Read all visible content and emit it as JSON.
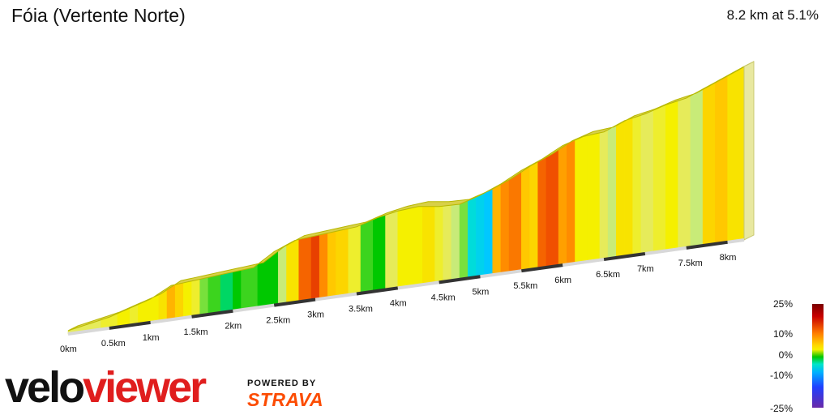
{
  "header": {
    "title": "Fóia (Vertente Norte)",
    "summary": "8.2 km at 5.1%"
  },
  "chart_data": {
    "type": "area",
    "title": "Fóia (Vertente Norte)",
    "subtitle": "8.2 km at 5.1%",
    "xlabel": "",
    "ylabel": "",
    "x_unit": "km",
    "xlim": [
      0,
      8.2
    ],
    "x_ticks": [
      "0km",
      "0.5km",
      "1km",
      "1.5km",
      "2km",
      "2.5km",
      "3km",
      "3.5km",
      "4km",
      "4.5km",
      "5km",
      "5.5km",
      "6km",
      "6.5km",
      "7km",
      "7.5km",
      "8km"
    ],
    "x_tick_values": [
      0,
      0.5,
      1,
      1.5,
      2,
      2.5,
      3,
      3.5,
      4,
      4.5,
      5,
      5.5,
      6,
      6.5,
      7,
      7.5,
      8
    ],
    "profile": {
      "distance_km": [
        0,
        0.25,
        0.5,
        0.75,
        1,
        1.25,
        1.5,
        1.75,
        2,
        2.25,
        2.5,
        2.75,
        3,
        3.25,
        3.5,
        3.75,
        4,
        4.25,
        4.5,
        4.75,
        5,
        5.25,
        5.5,
        5.75,
        6,
        6.25,
        6.5,
        6.75,
        7,
        7.25,
        7.5,
        7.75,
        8,
        8.2
      ],
      "relative_height": [
        0,
        0.03,
        0.06,
        0.1,
        0.14,
        0.2,
        0.22,
        0.24,
        0.26,
        0.28,
        0.35,
        0.4,
        0.42,
        0.44,
        0.46,
        0.5,
        0.53,
        0.55,
        0.55,
        0.56,
        0.6,
        0.65,
        0.71,
        0.76,
        0.82,
        0.86,
        0.88,
        0.93,
        0.96,
        1.0,
        1.03,
        1.08,
        1.13,
        1.17
      ]
    },
    "segments": {
      "end_km": [
        0.2,
        0.4,
        0.6,
        0.75,
        0.85,
        1.0,
        1.1,
        1.2,
        1.3,
        1.4,
        1.5,
        1.6,
        1.7,
        1.85,
        2.0,
        2.1,
        2.3,
        2.45,
        2.55,
        2.65,
        2.8,
        2.95,
        3.05,
        3.15,
        3.25,
        3.4,
        3.55,
        3.7,
        3.85,
        4.0,
        4.15,
        4.3,
        4.45,
        4.55,
        4.65,
        4.75,
        4.85,
        4.95,
        5.05,
        5.15,
        5.25,
        5.35,
        5.5,
        5.6,
        5.7,
        5.8,
        5.95,
        6.05,
        6.15,
        6.3,
        6.45,
        6.55,
        6.65,
        6.75,
        6.85,
        6.95,
        7.1,
        7.25,
        7.4,
        7.55,
        7.7,
        7.85,
        8.0,
        8.2
      ],
      "grade_pct": [
        4,
        4,
        5,
        6,
        5,
        6,
        6,
        7,
        10,
        8,
        6,
        5,
        2,
        1,
        -1,
        0,
        1,
        0,
        0,
        3,
        7,
        14,
        16,
        12,
        9,
        8,
        5,
        1,
        0,
        4,
        6,
        6,
        7,
        5,
        4,
        3,
        2,
        -3,
        -4,
        -5,
        10,
        12,
        13,
        9,
        8,
        14,
        15,
        11,
        12,
        6,
        6,
        4,
        3,
        7,
        7,
        5,
        4,
        5,
        6,
        4,
        3,
        8,
        9,
        7
      ]
    },
    "grade_scale": {
      "labels": [
        "25%",
        "10%",
        "0%",
        "-10%",
        "-25%"
      ],
      "values": [
        25,
        10,
        0,
        -10,
        -25
      ]
    },
    "colors": {
      "outline": "#b8b800",
      "base": "#d8d8d8",
      "base_tick": "#333333",
      "strava": "#fc4c02"
    }
  },
  "brand": {
    "logo_text": "veloviewer",
    "powered_by": "POWERED BY",
    "strava": "STRAVA"
  }
}
